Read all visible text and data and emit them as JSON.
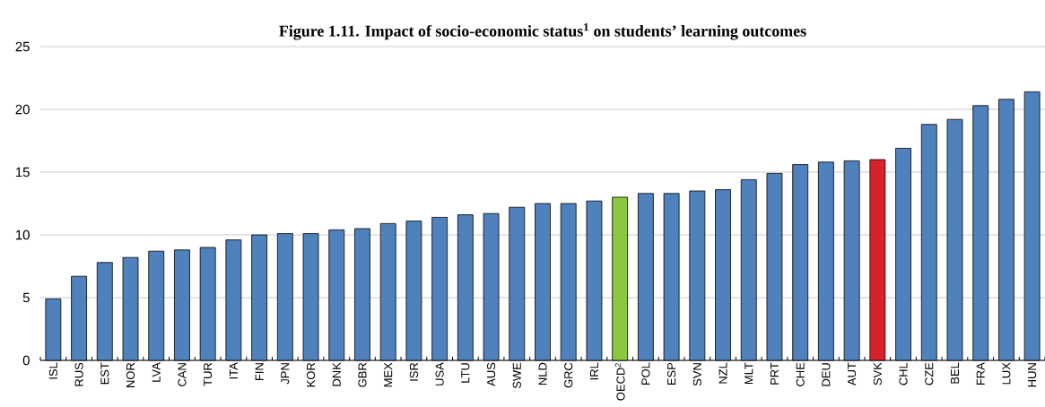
{
  "chart_data": {
    "type": "bar",
    "title": "Figure 1.11. Impact of socio-economic status$^{1}$ on students’ learning outcomes",
    "categories": [
      "ISL",
      "RUS",
      "EST",
      "NOR",
      "LVA",
      "CAN",
      "TUR",
      "ITA",
      "FIN",
      "JPN",
      "KOR",
      "DNK",
      "GBR",
      "MEX",
      "ISR",
      "USA",
      "LTU",
      "AUS",
      "SWE",
      "NLD",
      "GRC",
      "IRL",
      "OECD$^{2}$",
      "POL",
      "ESP",
      "SVN",
      "NZL",
      "MLT",
      "PRT",
      "CHE",
      "DEU",
      "AUT",
      "SVK",
      "CHL",
      "CZE",
      "BEL",
      "FRA",
      "LUX",
      "HUN"
    ],
    "values": [
      4.9,
      6.7,
      7.8,
      8.2,
      8.7,
      8.8,
      9.0,
      9.6,
      10.0,
      10.1,
      10.1,
      10.4,
      10.5,
      10.9,
      11.1,
      11.4,
      11.6,
      11.7,
      12.2,
      12.5,
      12.5,
      12.7,
      13.0,
      13.3,
      13.3,
      13.5,
      13.6,
      14.4,
      14.9,
      15.6,
      15.8,
      15.9,
      16.0,
      16.9,
      18.8,
      19.2,
      20.3,
      20.8,
      21.4
    ],
    "colors": [
      "#4f81bd",
      "#4f81bd",
      "#4f81bd",
      "#4f81bd",
      "#4f81bd",
      "#4f81bd",
      "#4f81bd",
      "#4f81bd",
      "#4f81bd",
      "#4f81bd",
      "#4f81bd",
      "#4f81bd",
      "#4f81bd",
      "#4f81bd",
      "#4f81bd",
      "#4f81bd",
      "#4f81bd",
      "#4f81bd",
      "#4f81bd",
      "#4f81bd",
      "#4f81bd",
      "#4f81bd",
      "#8dc63f",
      "#4f81bd",
      "#4f81bd",
      "#4f81bd",
      "#4f81bd",
      "#4f81bd",
      "#4f81bd",
      "#4f81bd",
      "#4f81bd",
      "#4f81bd",
      "#d7222a",
      "#4f81bd",
      "#4f81bd",
      "#4f81bd",
      "#4f81bd",
      "#4f81bd",
      "#4f81bd"
    ],
    "ylim": [
      0,
      25
    ],
    "yticks": [
      0,
      5,
      10,
      15,
      20,
      25
    ],
    "grid": "y"
  }
}
